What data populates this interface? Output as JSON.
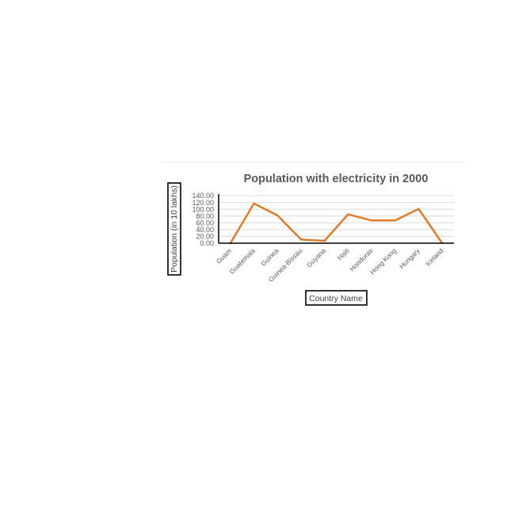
{
  "chart_data": {
    "type": "line",
    "title": "Population with electricity in 2000",
    "xlabel": "Country Name",
    "ylabel": "Population (in 10 lakhs)",
    "categories": [
      "Guam",
      "Guatemala",
      "Guinea",
      "Guinea-Bissau",
      "Guyana",
      "Haiti",
      "Honduras",
      "Hong Kong",
      "Hungary",
      "Iceland"
    ],
    "series": [
      {
        "name": "",
        "color": "#E07B28",
        "values": [
          0,
          117,
          82,
          11,
          7,
          85,
          67,
          67,
          101,
          0
        ]
      }
    ],
    "ylim": [
      0,
      140
    ],
    "yticks": [
      "140.00",
      "120.00",
      "100.00",
      "80.00",
      "60.00",
      "40.00",
      "20.00",
      "0.00"
    ],
    "grid": true,
    "legend": "none"
  }
}
